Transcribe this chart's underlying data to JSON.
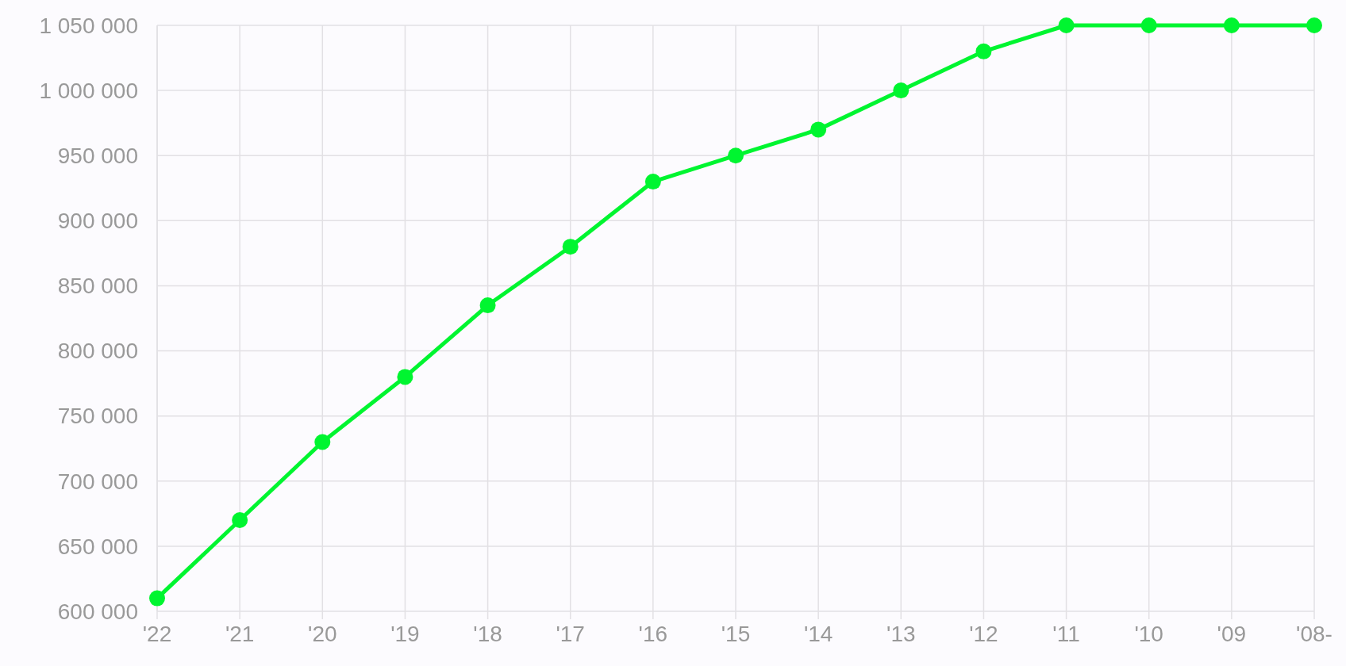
{
  "chart_data": {
    "type": "line",
    "categories": [
      "'22",
      "'21",
      "'20",
      "'19",
      "'18",
      "'17",
      "'16",
      "'15",
      "'14",
      "'13",
      "'12",
      "'11",
      "'10",
      "'09",
      "'08-"
    ],
    "series": [
      {
        "color": "#00f530",
        "values": [
          610000,
          670000,
          730000,
          780000,
          835000,
          880000,
          930000,
          950000,
          970000,
          1000000,
          1030000,
          1050000,
          1050000,
          1050000,
          1050000
        ]
      }
    ],
    "ylim": [
      600000,
      1050000
    ],
    "yticks": [
      {
        "value": 600000,
        "label": "600 000"
      },
      {
        "value": 650000,
        "label": "650 000"
      },
      {
        "value": 700000,
        "label": "700 000"
      },
      {
        "value": 750000,
        "label": "750 000"
      },
      {
        "value": 800000,
        "label": "800 000"
      },
      {
        "value": 850000,
        "label": "850 000"
      },
      {
        "value": 900000,
        "label": "900 000"
      },
      {
        "value": 950000,
        "label": "950 000"
      },
      {
        "value": 1000000,
        "label": "1 000 000"
      },
      {
        "value": 1050000,
        "label": "1 050 000"
      }
    ],
    "grid": true,
    "marker": "circle",
    "line_style": "solid"
  }
}
